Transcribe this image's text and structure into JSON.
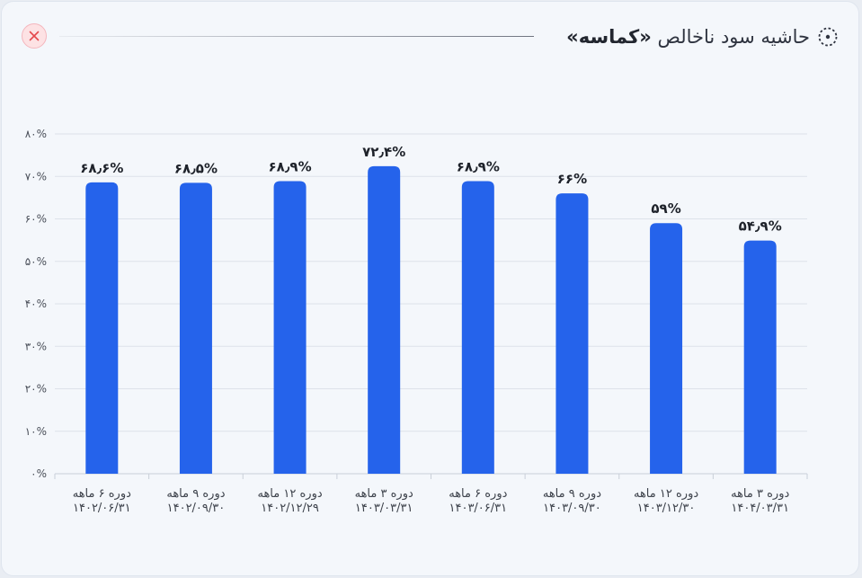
{
  "header": {
    "title_prefix": "حاشیه سود ناخالص",
    "title_symbol": "«کماسه»",
    "icon": "dotted-circle-icon",
    "close_icon": "close-icon"
  },
  "colors": {
    "bar": "#2563eb",
    "grid": "#dde2ea",
    "close_bg": "#fde2e4",
    "close_x": "#e5484d"
  },
  "chart_data": {
    "type": "bar",
    "categories": [
      [
        "دوره ۶ ماهه",
        "۱۴۰۲/۰۶/۳۱"
      ],
      [
        "دوره ۹ ماهه",
        "۱۴۰۲/۰۹/۳۰"
      ],
      [
        "دوره ۱۲ ماهه",
        "۱۴۰۲/۱۲/۲۹"
      ],
      [
        "دوره ۳ ماهه",
        "۱۴۰۳/۰۳/۳۱"
      ],
      [
        "دوره ۶ ماهه",
        "۱۴۰۳/۰۶/۳۱"
      ],
      [
        "دوره ۹ ماهه",
        "۱۴۰۳/۰۹/۳۰"
      ],
      [
        "دوره ۱۲ ماهه",
        "۱۴۰۳/۱۲/۳۰"
      ],
      [
        "دوره ۳ ماهه",
        "۱۴۰۴/۰۳/۳۱"
      ]
    ],
    "values": [
      68.6,
      68.5,
      68.9,
      72.4,
      68.9,
      66,
      59,
      54.9
    ],
    "data_labels": [
      "۶۸٫۶%",
      "۶۸٫۵%",
      "۶۸٫۹%",
      "۷۲٫۴%",
      "۶۸٫۹%",
      "۶۶%",
      "۵۹%",
      "۵۴٫۹%"
    ],
    "y_ticks": [
      0,
      10,
      20,
      30,
      40,
      50,
      60,
      70,
      80
    ],
    "y_tick_labels": [
      "۰%",
      "۱۰%",
      "۲۰%",
      "۳۰%",
      "۴۰%",
      "۵۰%",
      "۶۰%",
      "۷۰%",
      "۸۰%"
    ],
    "ylim": [
      0,
      80
    ],
    "grid": true,
    "title": "",
    "xlabel": "",
    "ylabel": ""
  }
}
